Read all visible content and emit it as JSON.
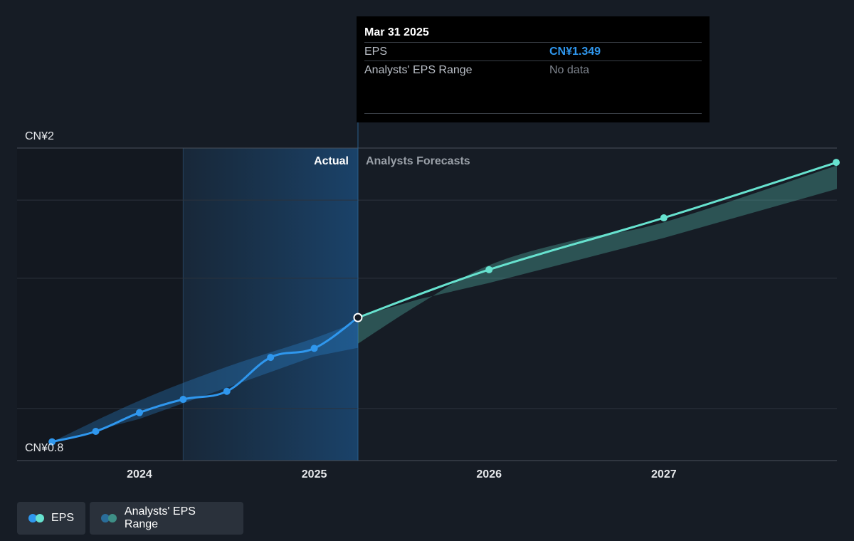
{
  "chart_data": {
    "type": "line",
    "x_unit": "year",
    "xlim": [
      2023.3,
      2027.99
    ],
    "ylim": [
      0.8,
      2.0
    ],
    "y_tick_labels": [
      "CN¥2",
      "CN¥0.8"
    ],
    "x_ticks": [
      2024,
      2025,
      2026,
      2027
    ],
    "x_tick_labels": [
      "2024",
      "2025",
      "2026",
      "2027"
    ],
    "region_labels": {
      "actual": "Actual",
      "forecast": "Analysts Forecasts"
    },
    "divider_x": 2025.25,
    "shaded_start_x": 2024.25,
    "series": [
      {
        "name": "EPS",
        "color": "#2f97ee",
        "points": [
          {
            "x": 2023.5,
            "y": 0.872
          },
          {
            "x": 2023.75,
            "y": 0.912
          },
          {
            "x": 2024.0,
            "y": 0.984
          },
          {
            "x": 2024.25,
            "y": 1.035
          },
          {
            "x": 2024.5,
            "y": 1.066
          },
          {
            "x": 2024.75,
            "y": 1.196
          },
          {
            "x": 2025.0,
            "y": 1.231
          },
          {
            "x": 2025.25,
            "y": 1.349
          }
        ]
      },
      {
        "name": "Analysts Forecast",
        "color": "#67e2cf",
        "points": [
          {
            "x": 2025.25,
            "y": 1.349
          },
          {
            "x": 2026.0,
            "y": 1.533
          },
          {
            "x": 2027.0,
            "y": 1.732
          },
          {
            "x": 2027.99,
            "y": 1.945
          }
        ]
      }
    ],
    "actual_range_band": {
      "color": "#2f97ee",
      "upper": [
        {
          "x": 2023.5,
          "y": 0.872
        },
        {
          "x": 2024.0,
          "y": 1.03
        },
        {
          "x": 2024.5,
          "y": 1.16
        },
        {
          "x": 2025.0,
          "y": 1.27
        },
        {
          "x": 2025.25,
          "y": 1.335
        }
      ],
      "lower": [
        {
          "x": 2025.25,
          "y": 1.233
        },
        {
          "x": 2025.0,
          "y": 1.2
        },
        {
          "x": 2024.5,
          "y": 1.08
        },
        {
          "x": 2024.0,
          "y": 0.96
        },
        {
          "x": 2023.5,
          "y": 0.872
        }
      ]
    },
    "forecast_range_band": {
      "color": "#67e2cf",
      "upper": [
        {
          "x": 2025.25,
          "y": 1.249
        },
        {
          "x": 2025.6,
          "y": 1.4
        },
        {
          "x": 2026.0,
          "y": 1.55
        },
        {
          "x": 2026.5,
          "y": 1.648
        },
        {
          "x": 2027.0,
          "y": 1.715
        },
        {
          "x": 2027.99,
          "y": 1.933
        }
      ],
      "lower": [
        {
          "x": 2027.99,
          "y": 1.843
        },
        {
          "x": 2027.0,
          "y": 1.655
        },
        {
          "x": 2026.0,
          "y": 1.482
        },
        {
          "x": 2025.6,
          "y": 1.42
        },
        {
          "x": 2025.25,
          "y": 1.351
        }
      ]
    }
  },
  "tooltip": {
    "date": "Mar 31 2025",
    "rows": [
      {
        "label": "EPS",
        "value": "CN¥1.349"
      },
      {
        "label": "Analysts' EPS Range",
        "value": "No data"
      }
    ]
  },
  "legend": {
    "eps": {
      "label": "EPS",
      "colors": [
        "#2f97ee",
        "#67e2cf"
      ]
    },
    "range": {
      "label": "Analysts' EPS Range",
      "colors": [
        "#2a6d9a",
        "#3e8f86"
      ]
    }
  }
}
